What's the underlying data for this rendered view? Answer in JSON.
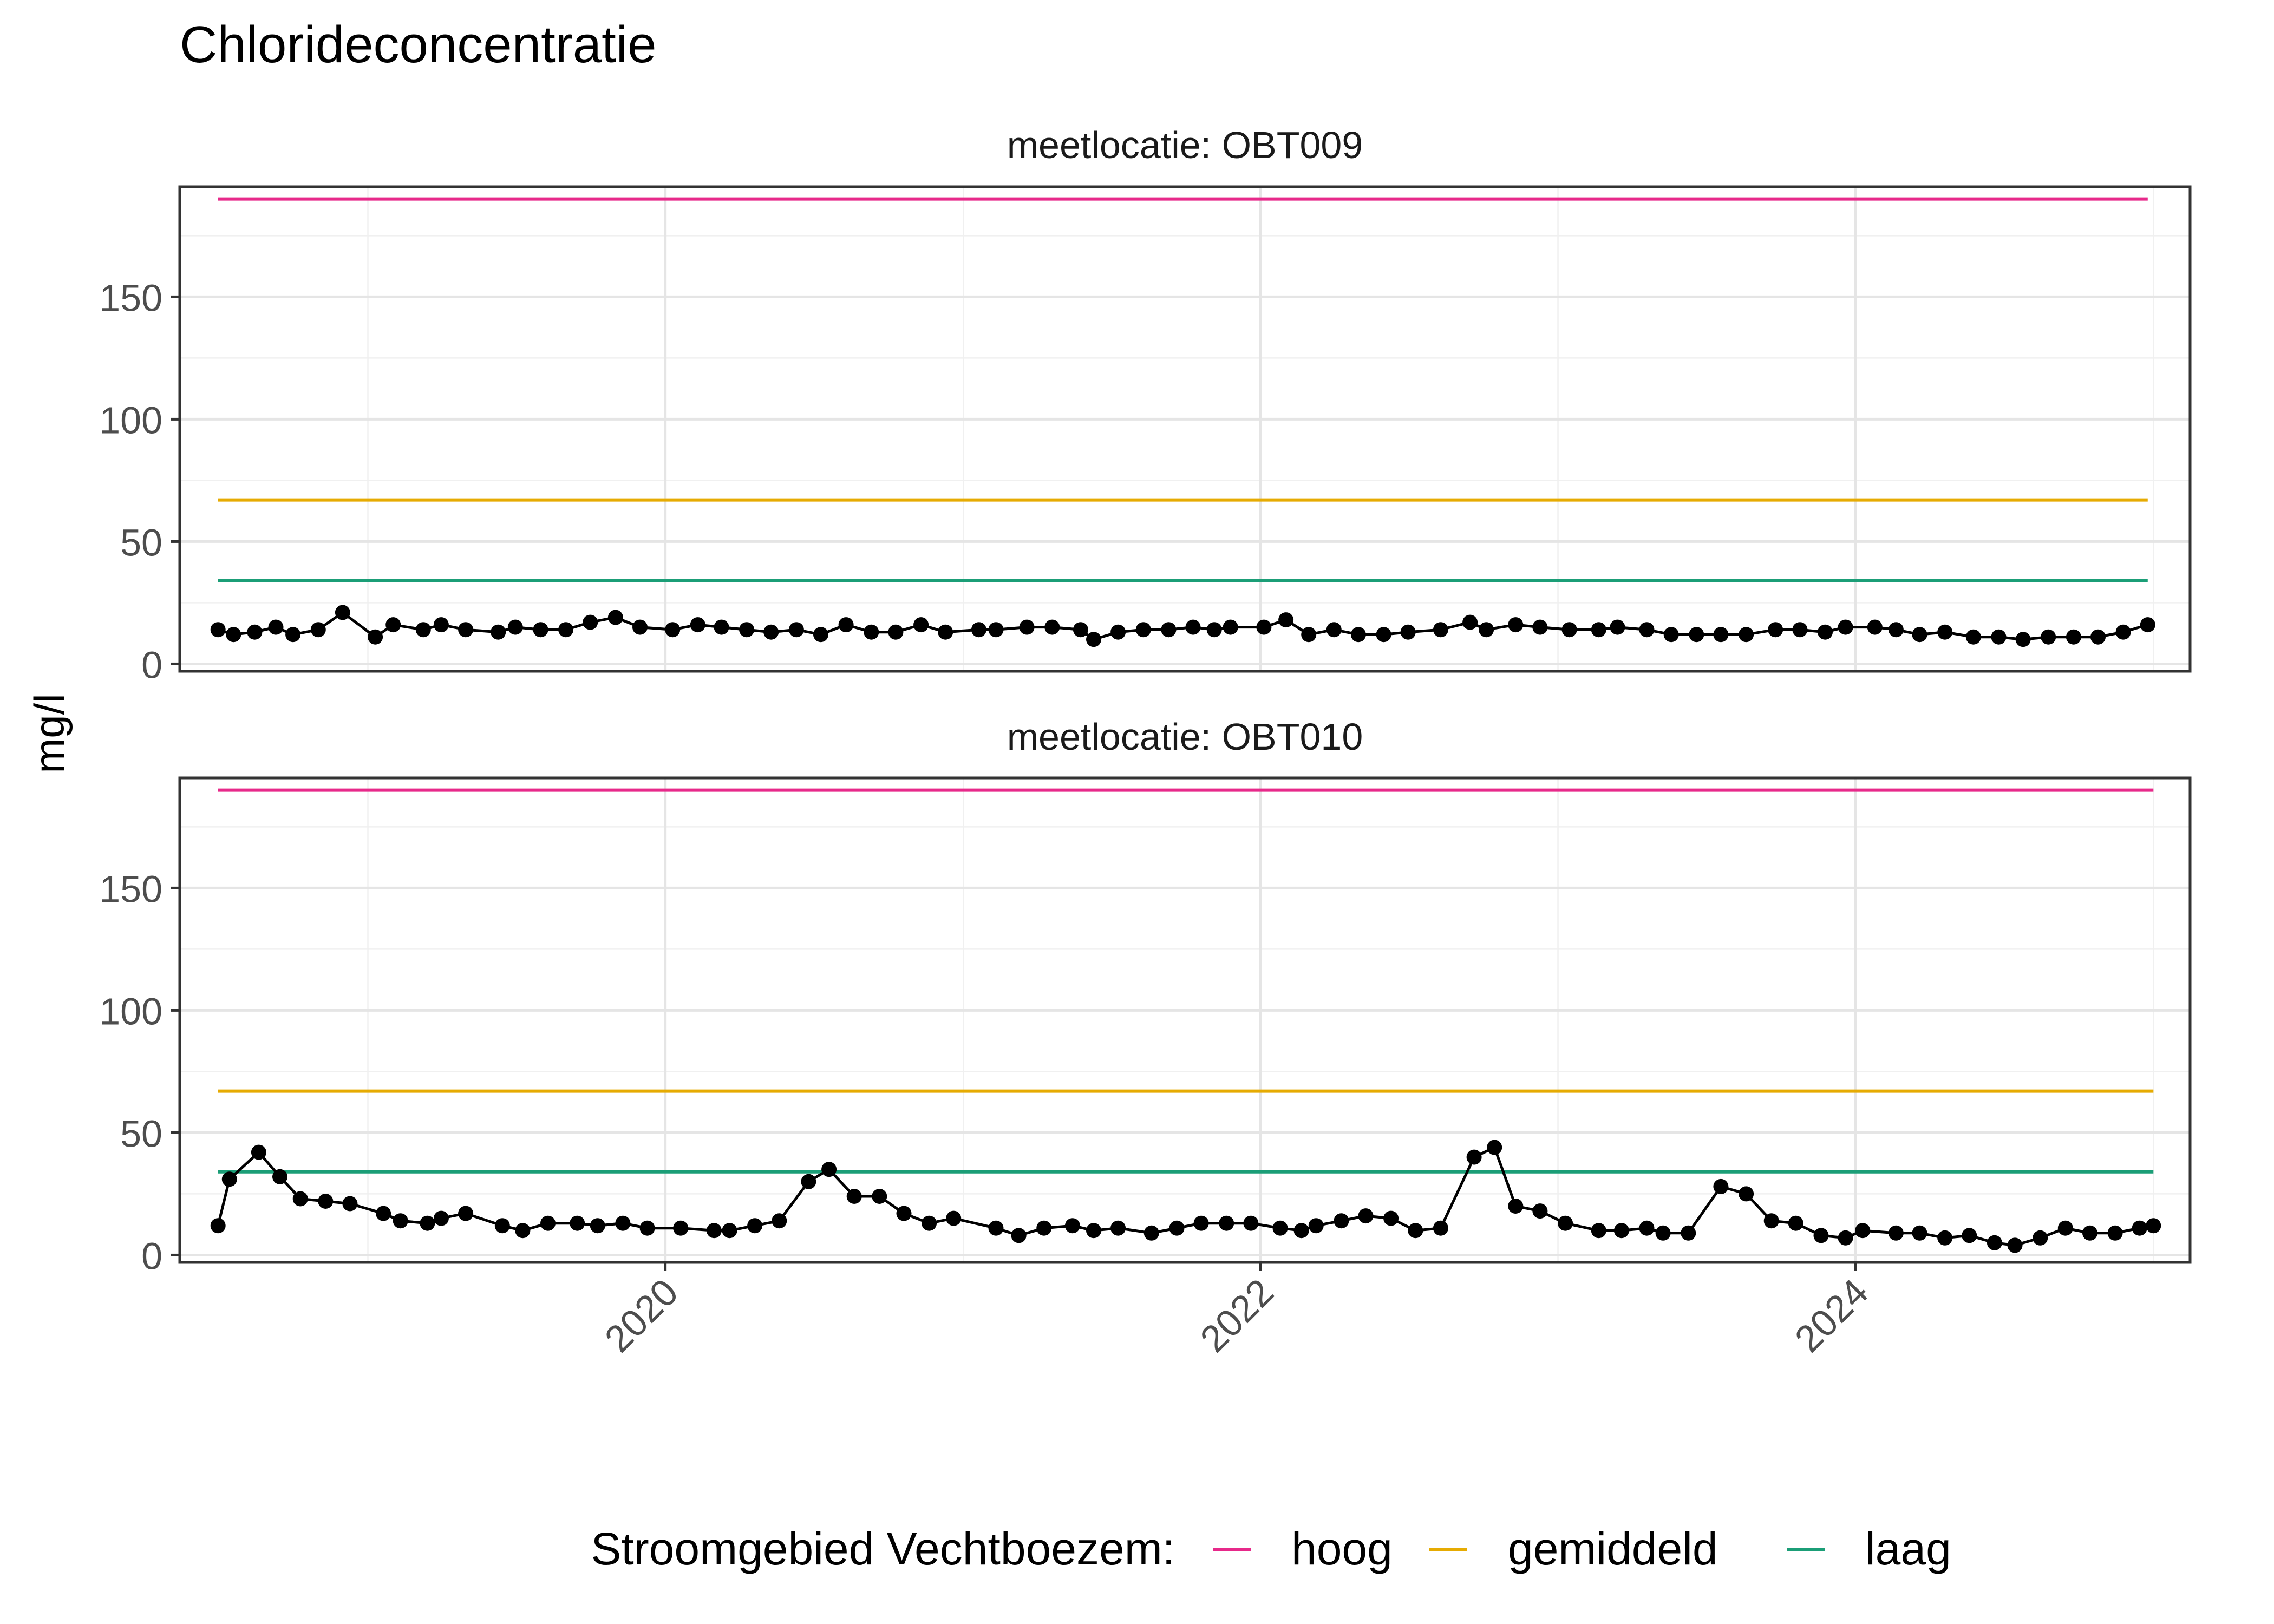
{
  "chart_data": {
    "type": "line",
    "title": "Chlorideconcentratie",
    "ylabel": "mg/l",
    "xlabel": "",
    "facet_prefix": "meetlocatie: ",
    "ylim": [
      -3,
      195
    ],
    "xlim": [
      "2018-05-15",
      "2025-02-15"
    ],
    "y_ticks": [
      0,
      50,
      100,
      150
    ],
    "x_ticks": [
      "2020",
      "2022",
      "2024"
    ],
    "grid": true,
    "legend": {
      "position": "bottom",
      "title": "Stroomgebied Vechtboezem:",
      "entries": [
        {
          "label": "hoog",
          "value": 190,
          "color": "#e7298a"
        },
        {
          "label": "gemiddeld",
          "value": 67,
          "color": "#e6ab02"
        },
        {
          "label": "laag",
          "value": 34,
          "color": "#1b9e77"
        }
      ]
    },
    "series_color": "#000000",
    "panels": [
      {
        "location": "OBT009",
        "points": [
          [
            "2018-07-01",
            14
          ],
          [
            "2018-07-20",
            12
          ],
          [
            "2018-08-15",
            13
          ],
          [
            "2018-09-10",
            15
          ],
          [
            "2018-10-01",
            12
          ],
          [
            "2018-11-01",
            14
          ],
          [
            "2018-12-01",
            21
          ],
          [
            "2019-01-10",
            11
          ],
          [
            "2019-02-01",
            16
          ],
          [
            "2019-03-10",
            14
          ],
          [
            "2019-04-01",
            16
          ],
          [
            "2019-05-01",
            14
          ],
          [
            "2019-06-10",
            13
          ],
          [
            "2019-07-01",
            15
          ],
          [
            "2019-08-01",
            14
          ],
          [
            "2019-09-01",
            14
          ],
          [
            "2019-10-01",
            17
          ],
          [
            "2019-11-01",
            19
          ],
          [
            "2019-12-01",
            15
          ],
          [
            "2020-01-10",
            14
          ],
          [
            "2020-02-10",
            16
          ],
          [
            "2020-03-10",
            15
          ],
          [
            "2020-04-10",
            14
          ],
          [
            "2020-05-10",
            13
          ],
          [
            "2020-06-10",
            14
          ],
          [
            "2020-07-10",
            12
          ],
          [
            "2020-08-10",
            16
          ],
          [
            "2020-09-10",
            13
          ],
          [
            "2020-10-10",
            13
          ],
          [
            "2020-11-10",
            16
          ],
          [
            "2020-12-10",
            13
          ],
          [
            "2021-01-20",
            14
          ],
          [
            "2021-02-10",
            14
          ],
          [
            "2021-03-20",
            15
          ],
          [
            "2021-04-20",
            15
          ],
          [
            "2021-05-25",
            14
          ],
          [
            "2021-06-10",
            10
          ],
          [
            "2021-07-10",
            13
          ],
          [
            "2021-08-10",
            14
          ],
          [
            "2021-09-10",
            14
          ],
          [
            "2021-10-10",
            15
          ],
          [
            "2021-11-05",
            14
          ],
          [
            "2021-11-25",
            15
          ],
          [
            "2022-01-05",
            15
          ],
          [
            "2022-02-01",
            18
          ],
          [
            "2022-03-01",
            12
          ],
          [
            "2022-04-01",
            14
          ],
          [
            "2022-05-01",
            12
          ],
          [
            "2022-06-01",
            12
          ],
          [
            "2022-07-01",
            13
          ],
          [
            "2022-08-10",
            14
          ],
          [
            "2022-09-15",
            17
          ],
          [
            "2022-10-05",
            14
          ],
          [
            "2022-11-10",
            16
          ],
          [
            "2022-12-10",
            15
          ],
          [
            "2023-01-15",
            14
          ],
          [
            "2023-02-20",
            14
          ],
          [
            "2023-03-15",
            15
          ],
          [
            "2023-04-20",
            14
          ],
          [
            "2023-05-20",
            12
          ],
          [
            "2023-06-20",
            12
          ],
          [
            "2023-07-20",
            12
          ],
          [
            "2023-08-20",
            12
          ],
          [
            "2023-09-25",
            14
          ],
          [
            "2023-10-25",
            14
          ],
          [
            "2023-11-25",
            13
          ],
          [
            "2023-12-20",
            15
          ],
          [
            "2024-01-25",
            15
          ],
          [
            "2024-02-20",
            14
          ],
          [
            "2024-03-20",
            12
          ],
          [
            "2024-04-20",
            13
          ],
          [
            "2024-05-25",
            11
          ],
          [
            "2024-06-25",
            11
          ],
          [
            "2024-07-25",
            10
          ],
          [
            "2024-08-25",
            11
          ],
          [
            "2024-09-25",
            11
          ],
          [
            "2024-10-25",
            11
          ],
          [
            "2024-11-25",
            13
          ],
          [
            "2024-12-25",
            16
          ]
        ]
      },
      {
        "location": "OBT010",
        "points": [
          [
            "2018-07-01",
            12
          ],
          [
            "2018-07-15",
            31
          ],
          [
            "2018-08-20",
            42
          ],
          [
            "2018-09-15",
            32
          ],
          [
            "2018-10-10",
            23
          ],
          [
            "2018-11-10",
            22
          ],
          [
            "2018-12-10",
            21
          ],
          [
            "2019-01-20",
            17
          ],
          [
            "2019-02-10",
            14
          ],
          [
            "2019-03-15",
            13
          ],
          [
            "2019-04-01",
            15
          ],
          [
            "2019-05-01",
            17
          ],
          [
            "2019-06-15",
            12
          ],
          [
            "2019-07-10",
            10
          ],
          [
            "2019-08-10",
            13
          ],
          [
            "2019-09-15",
            13
          ],
          [
            "2019-10-10",
            12
          ],
          [
            "2019-11-10",
            13
          ],
          [
            "2019-12-10",
            11
          ],
          [
            "2020-01-20",
            11
          ],
          [
            "2020-03-01",
            10
          ],
          [
            "2020-03-20",
            10
          ],
          [
            "2020-04-20",
            12
          ],
          [
            "2020-05-20",
            14
          ],
          [
            "2020-06-25",
            30
          ],
          [
            "2020-07-20",
            35
          ],
          [
            "2020-08-20",
            24
          ],
          [
            "2020-09-20",
            24
          ],
          [
            "2020-10-20",
            17
          ],
          [
            "2020-11-20",
            13
          ],
          [
            "2020-12-20",
            15
          ],
          [
            "2021-02-10",
            11
          ],
          [
            "2021-03-10",
            8
          ],
          [
            "2021-04-10",
            11
          ],
          [
            "2021-05-15",
            12
          ],
          [
            "2021-06-10",
            10
          ],
          [
            "2021-07-10",
            11
          ],
          [
            "2021-08-20",
            9
          ],
          [
            "2021-09-20",
            11
          ],
          [
            "2021-10-20",
            13
          ],
          [
            "2021-11-20",
            13
          ],
          [
            "2021-12-20",
            13
          ],
          [
            "2022-01-25",
            11
          ],
          [
            "2022-02-20",
            10
          ],
          [
            "2022-03-10",
            12
          ],
          [
            "2022-04-10",
            14
          ],
          [
            "2022-05-10",
            16
          ],
          [
            "2022-06-10",
            15
          ],
          [
            "2022-07-10",
            10
          ],
          [
            "2022-08-10",
            11
          ],
          [
            "2022-09-20",
            40
          ],
          [
            "2022-10-15",
            44
          ],
          [
            "2022-11-10",
            20
          ],
          [
            "2022-12-10",
            18
          ],
          [
            "2023-01-10",
            13
          ],
          [
            "2023-02-20",
            10
          ],
          [
            "2023-03-20",
            10
          ],
          [
            "2023-04-20",
            11
          ],
          [
            "2023-05-10",
            9
          ],
          [
            "2023-06-10",
            9
          ],
          [
            "2023-07-20",
            28
          ],
          [
            "2023-08-20",
            25
          ],
          [
            "2023-09-20",
            14
          ],
          [
            "2023-10-20",
            13
          ],
          [
            "2023-11-20",
            8
          ],
          [
            "2023-12-20",
            7
          ],
          [
            "2024-01-10",
            10
          ],
          [
            "2024-02-20",
            9
          ],
          [
            "2024-03-20",
            9
          ],
          [
            "2024-04-20",
            7
          ],
          [
            "2024-05-20",
            8
          ],
          [
            "2024-06-20",
            5
          ],
          [
            "2024-07-15",
            4
          ],
          [
            "2024-08-15",
            7
          ],
          [
            "2024-09-15",
            11
          ],
          [
            "2024-10-15",
            9
          ],
          [
            "2024-11-15",
            9
          ],
          [
            "2024-12-15",
            11
          ],
          [
            "2025-01-01",
            12
          ]
        ]
      }
    ]
  }
}
